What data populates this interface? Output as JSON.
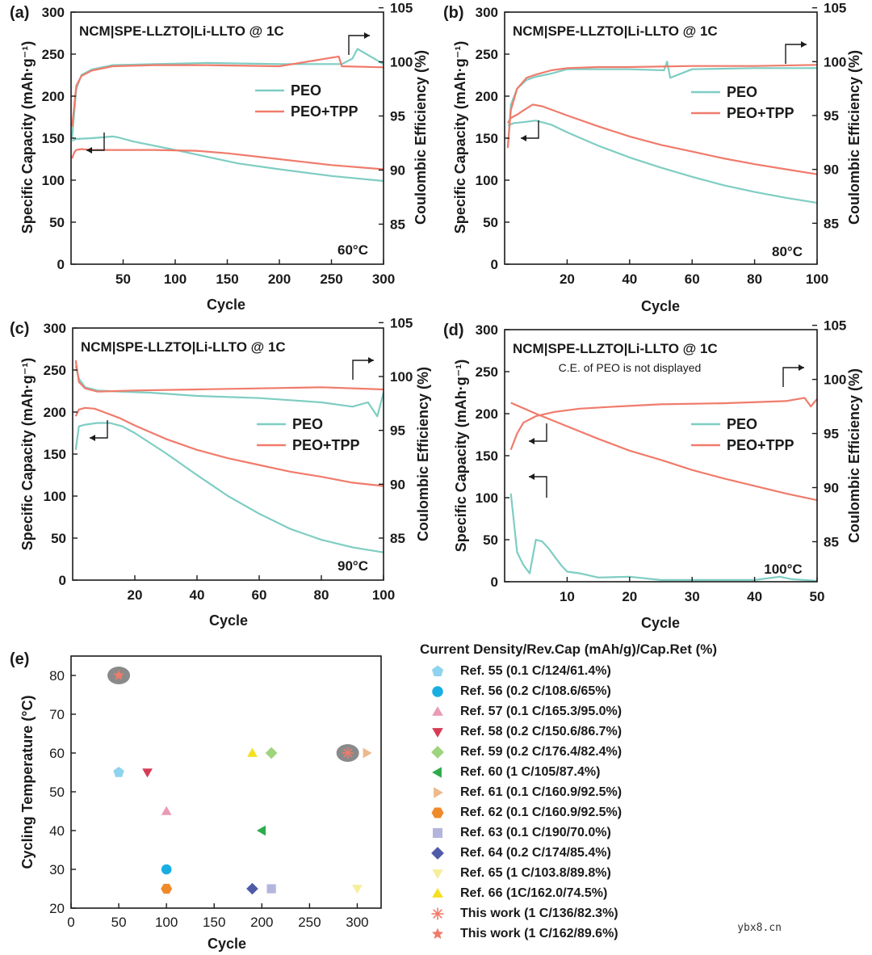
{
  "chart_data": [
    {
      "panel": "a",
      "panel_label": "(a)",
      "type": "line",
      "title": "NCM|SPE-LLZTO|Li-LLTO @ 1C",
      "temperature": "60°C",
      "xlabel": "Cycle",
      "ylabel": "Specific Capacity (mAh·g⁻¹)",
      "y2label": "Coulombic Efficiency (%)",
      "xlim": [
        0,
        300
      ],
      "xticks": [
        50,
        100,
        150,
        200,
        250,
        300
      ],
      "ylim": [
        0,
        300
      ],
      "yticks": [
        0,
        50,
        100,
        150,
        200,
        250,
        300
      ],
      "y2lim": [
        81.3,
        104.6
      ],
      "y2ticks": [
        85,
        90,
        95,
        100,
        105
      ],
      "legend": [
        "PEO",
        "PEO+TPP"
      ],
      "series": [
        {
          "name": "PEO",
          "axis": "capacity",
          "color": "#7ecdc3",
          "x": [
            1,
            5,
            20,
            40,
            45,
            60,
            100,
            130,
            160,
            200,
            250,
            300
          ],
          "y": [
            147,
            149,
            150,
            152,
            151,
            146,
            136,
            128,
            120,
            113,
            105,
            99
          ]
        },
        {
          "name": "PEO+TPP",
          "axis": "capacity",
          "color": "#f07b6b",
          "x": [
            1,
            3,
            5,
            10,
            20,
            40,
            80,
            120,
            150,
            200,
            250,
            300
          ],
          "y": [
            126,
            133,
            136,
            137,
            136,
            136,
            136,
            135,
            132,
            125,
            118,
            113
          ]
        },
        {
          "name": "PEO",
          "axis": "efficiency",
          "color": "#7ecdc3",
          "x": [
            1,
            5,
            10,
            20,
            40,
            80,
            130,
            200,
            260,
            270,
            275,
            300
          ],
          "y": [
            93,
            97.5,
            98.8,
            99.3,
            99.7,
            99.8,
            99.9,
            99.8,
            99.8,
            100.3,
            101.2,
            99.8
          ]
        },
        {
          "name": "PEO+TPP",
          "axis": "efficiency",
          "color": "#f07b6b",
          "x": [
            1,
            5,
            10,
            20,
            40,
            80,
            130,
            200,
            257,
            260,
            300
          ],
          "y": [
            94,
            97.8,
            98.7,
            99.2,
            99.6,
            99.7,
            99.7,
            99.6,
            100.5,
            99.6,
            99.5
          ]
        }
      ]
    },
    {
      "panel": "b",
      "panel_label": "(b)",
      "type": "line",
      "title": "NCM|SPE-LLZTO|Li-LLTO @ 1C",
      "temperature": "80°C",
      "xlabel": "Cycle",
      "ylabel": "Specific Capacity (mAh·g⁻¹)",
      "y2label": "Coulombic Efficiency (%)",
      "xlim": [
        0,
        100
      ],
      "xticks": [
        20,
        40,
        60,
        80,
        100
      ],
      "ylim": [
        0,
        300
      ],
      "yticks": [
        0,
        50,
        100,
        150,
        200,
        250,
        300
      ],
      "y2lim": [
        81.2,
        104.6
      ],
      "y2ticks": [
        85,
        90,
        95,
        100,
        105
      ],
      "legend": [
        "PEO",
        "PEO+TPP"
      ],
      "series": [
        {
          "name": "PEO",
          "axis": "capacity",
          "color": "#7ecdc3",
          "x": [
            1,
            3,
            6,
            10,
            15,
            20,
            30,
            40,
            50,
            60,
            70,
            80,
            90,
            100
          ],
          "y": [
            165,
            168,
            169,
            171,
            166,
            157,
            141,
            127,
            115,
            104,
            94,
            86,
            79,
            73
          ]
        },
        {
          "name": "PEO+TPP",
          "axis": "capacity",
          "color": "#f07b6b",
          "x": [
            1,
            2,
            4,
            6,
            9,
            12,
            20,
            30,
            40,
            50,
            60,
            70,
            80,
            90,
            100
          ],
          "y": [
            168,
            174,
            178,
            183,
            190,
            188,
            177,
            164,
            152,
            142,
            134,
            126,
            119,
            113,
            107
          ]
        },
        {
          "name": "PEO",
          "axis": "efficiency",
          "color": "#7ecdc3",
          "x": [
            1,
            2,
            4,
            7,
            10,
            15,
            20,
            30,
            40,
            51,
            52,
            53,
            60,
            80,
            100
          ],
          "y": [
            92,
            96,
            97.5,
            98.3,
            98.6,
            98.9,
            99.3,
            99.3,
            99.3,
            99.2,
            100,
            98.5,
            99.3,
            99.4,
            99.4
          ]
        },
        {
          "name": "PEO+TPP",
          "axis": "efficiency",
          "color": "#f07b6b",
          "x": [
            1,
            2,
            4,
            7,
            10,
            15,
            20,
            30,
            40,
            60,
            80,
            100
          ],
          "y": [
            92,
            95.5,
            97.5,
            98.5,
            98.8,
            99.2,
            99.4,
            99.5,
            99.5,
            99.6,
            99.6,
            99.7
          ]
        }
      ]
    },
    {
      "panel": "c",
      "panel_label": "(c)",
      "type": "line",
      "title": "NCM|SPE-LLZTO|Li-LLTO @ 1C",
      "temperature": "90°C",
      "xlabel": "Cycle",
      "ylabel": "Specific Capacity (mAh·g⁻¹)",
      "y2label": "Coulombic Efficiency (%)",
      "xlim": [
        0,
        100
      ],
      "xticks": [
        20,
        40,
        60,
        80,
        100
      ],
      "ylim": [
        0,
        300
      ],
      "yticks": [
        0,
        50,
        100,
        150,
        200,
        250,
        300
      ],
      "y2lim": [
        81.1,
        104.5
      ],
      "y2ticks": [
        85,
        90,
        95,
        100,
        105
      ],
      "legend": [
        "PEO",
        "PEO+TPP"
      ],
      "series": [
        {
          "name": "PEO",
          "axis": "capacity",
          "color": "#7ecdc3",
          "x": [
            1,
            2,
            4,
            8,
            12,
            16,
            20,
            30,
            40,
            50,
            60,
            70,
            80,
            90,
            100
          ],
          "y": [
            155,
            183,
            185,
            187,
            187,
            183,
            175,
            151,
            125,
            100,
            79,
            61,
            48,
            39,
            33
          ]
        },
        {
          "name": "PEO+TPP",
          "axis": "capacity",
          "color": "#f07b6b",
          "x": [
            1,
            2,
            4,
            7,
            10,
            15,
            20,
            30,
            40,
            50,
            60,
            70,
            80,
            90,
            100
          ],
          "y": [
            195,
            203,
            205,
            204,
            200,
            193,
            184,
            168,
            155,
            145,
            137,
            129,
            123,
            116,
            112
          ]
        },
        {
          "name": "PEO",
          "axis": "efficiency",
          "color": "#7ecdc3",
          "x": [
            1,
            2,
            4,
            8,
            15,
            25,
            40,
            60,
            70,
            80,
            90,
            95,
            98,
            100
          ],
          "y": [
            101,
            99.8,
            99,
            98.7,
            98.6,
            98.5,
            98.2,
            98,
            97.8,
            97.6,
            97.2,
            97.6,
            96.3,
            98.5
          ]
        },
        {
          "name": "PEO+TPP",
          "axis": "efficiency",
          "color": "#f07b6b",
          "x": [
            1,
            2,
            4,
            8,
            20,
            40,
            60,
            80,
            100
          ],
          "y": [
            101.5,
            99.5,
            98.9,
            98.6,
            98.7,
            98.8,
            98.9,
            99,
            98.8
          ]
        }
      ]
    },
    {
      "panel": "d",
      "panel_label": "(d)",
      "type": "line",
      "title": "NCM|SPE-LLZTO|Li-LLTO @ 1C",
      "subtitle": "C.E. of PEO is not displayed",
      "temperature": "100°C",
      "xlabel": "Cycle",
      "ylabel": "Specific Capacity (mAh·g⁻¹)",
      "y2label": "Coulombic Efficiency (%)",
      "xlim": [
        0,
        50
      ],
      "xticks": [
        10,
        20,
        30,
        40,
        50
      ],
      "ylim": [
        0,
        300
      ],
      "yticks": [
        0,
        50,
        100,
        150,
        200,
        250,
        300
      ],
      "y2lim": [
        81.3,
        104.6
      ],
      "y2ticks": [
        85,
        90,
        95,
        100,
        105
      ],
      "legend": [
        "PEO",
        "PEO+TPP"
      ],
      "series": [
        {
          "name": "PEO",
          "axis": "capacity",
          "color": "#7ecdc3",
          "x": [
            1,
            2,
            3,
            4,
            5,
            6,
            7,
            8,
            9,
            10,
            12,
            15,
            20,
            25,
            30,
            40,
            44,
            46,
            50
          ],
          "y": [
            105,
            35,
            20,
            10,
            50,
            48,
            40,
            30,
            20,
            12,
            10,
            5,
            6,
            2,
            2,
            2,
            6,
            3,
            1
          ]
        },
        {
          "name": "PEO+TPP",
          "axis": "capacity",
          "color": "#f07b6b",
          "x": [
            1,
            5,
            10,
            15,
            20,
            25,
            30,
            35,
            40,
            45,
            50
          ],
          "y": [
            213,
            200,
            185,
            170,
            156,
            145,
            133,
            123,
            114,
            105,
            97
          ]
        },
        {
          "name": "PEO+TPP",
          "axis": "efficiency",
          "color": "#f07b6b",
          "x": [
            1,
            2,
            3,
            5,
            8,
            12,
            18,
            25,
            35,
            45,
            48,
            49,
            50
          ],
          "y": [
            93.5,
            95,
            96,
            96.6,
            97,
            97.3,
            97.5,
            97.7,
            97.8,
            98,
            98.3,
            97.5,
            98.2
          ]
        }
      ]
    },
    {
      "panel": "e",
      "panel_label": "(e)",
      "type": "scatter",
      "xlabel": "Cycle",
      "ylabel": "Cycling Temperature (°C)",
      "xlim": [
        0,
        325
      ],
      "xticks": [
        0,
        50,
        100,
        150,
        200,
        250,
        300
      ],
      "ylim": [
        20,
        85
      ],
      "yticks": [
        20,
        30,
        40,
        50,
        60,
        70,
        80
      ],
      "legend_title": "Current Density/Rev.Cap (mAh/g)/Cap.Ret (%)",
      "points": [
        {
          "label": "Ref. 55 (0.1 C/124/61.4%)",
          "marker": "pentagon",
          "color": "#8fd3ef",
          "x": 50,
          "y": 55
        },
        {
          "label": "Ref. 56 (0.2 C/108.6/65%)",
          "marker": "circle",
          "color": "#19aee2",
          "x": 100,
          "y": 30
        },
        {
          "label": "Ref. 57 (0.1 C/165.3/95.0%)",
          "marker": "triangle-up",
          "color": "#e99ab6",
          "x": 100,
          "y": 45
        },
        {
          "label": "Ref. 58 (0.2 C/150.6/86.7%)",
          "marker": "triangle-down",
          "color": "#d63b55",
          "x": 80,
          "y": 55
        },
        {
          "label": "Ref. 59 (0.2 C/176.4/82.4%)",
          "marker": "diamond",
          "color": "#9fd47e",
          "x": 210,
          "y": 60
        },
        {
          "label": "Ref. 60 (1 C/105/87.4%)",
          "marker": "triangle-left",
          "color": "#2cab4a",
          "x": 200,
          "y": 40
        },
        {
          "label": "Ref. 61 (0.1 C/160.9/92.5%)",
          "marker": "triangle-right",
          "color": "#edb98c",
          "x": 310,
          "y": 60
        },
        {
          "label": "Ref. 62 (0.1 C/160.9/92.5%)",
          "marker": "hexagon",
          "color": "#ef8a2a",
          "x": 100,
          "y": 25
        },
        {
          "label": "Ref. 63 (0.1 C/190/70.0%)",
          "marker": "square",
          "color": "#b3b5dc",
          "x": 210,
          "y": 25
        },
        {
          "label": "Ref. 64 (0.2 C/174/85.4%)",
          "marker": "diamond",
          "color": "#4f5ba8",
          "x": 190,
          "y": 25
        },
        {
          "label": "Ref. 65 (1 C/103.8/89.8%)",
          "marker": "triangle-down",
          "color": "#f5ee9b",
          "x": 300,
          "y": 25
        },
        {
          "label": "Ref. 66 (1C/162.0/74.5%)",
          "marker": "triangle-up",
          "color": "#f4e01e",
          "x": 190,
          "y": 60
        },
        {
          "label": "This work (1 C/136/82.3%)",
          "marker": "asterisk",
          "color": "#f07b6b",
          "x": 290,
          "y": 60,
          "highlight": true
        },
        {
          "label": "This work (1 C/162/89.6%)",
          "marker": "star",
          "color": "#f07b6b",
          "x": 50,
          "y": 80,
          "highlight": true
        }
      ]
    }
  ],
  "watermark": "ybx8.cn"
}
